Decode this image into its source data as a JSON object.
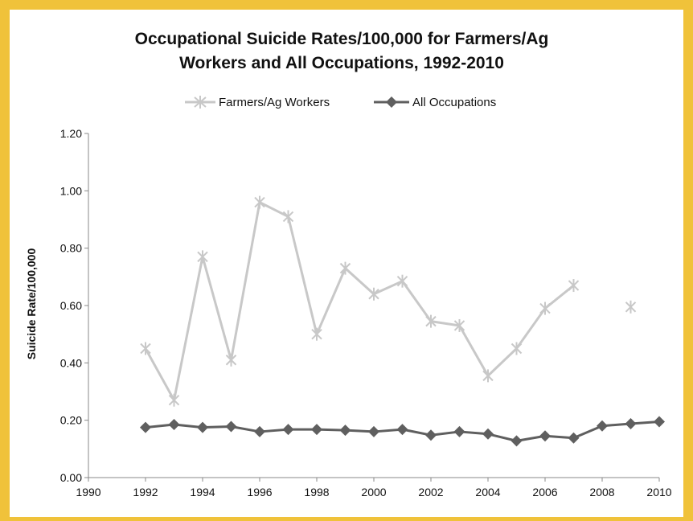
{
  "chart_data": {
    "type": "line",
    "title_lines": [
      "Occupational Suicide Rates/100,000 for Farmers/Ag",
      "Workers and All Occupations, 1992-2010"
    ],
    "xlabel": "",
    "ylabel": "Suicide Rate/100,000",
    "x_ticks": [
      "1990",
      "1992",
      "1994",
      "1996",
      "1998",
      "2000",
      "2002",
      "2004",
      "2006",
      "2008",
      "2010"
    ],
    "y_ticks": [
      "0.00",
      "0.20",
      "0.40",
      "0.60",
      "0.80",
      "1.00",
      "1.20"
    ],
    "xlim": [
      1990,
      2010
    ],
    "ylim": [
      0,
      1.2
    ],
    "grid": false,
    "legend_position": "top",
    "series": [
      {
        "name": "Farmers/Ag Workers",
        "color": "#c8c8c8",
        "marker": "star",
        "points": [
          {
            "x": 1992,
            "y": 0.45
          },
          {
            "x": 1993,
            "y": 0.27
          },
          {
            "x": 1994,
            "y": 0.77
          },
          {
            "x": 1995,
            "y": 0.41
          },
          {
            "x": 1996,
            "y": 0.96
          },
          {
            "x": 1997,
            "y": 0.91
          },
          {
            "x": 1998,
            "y": 0.5
          },
          {
            "x": 1999,
            "y": 0.73
          },
          {
            "x": 2000,
            "y": 0.64
          },
          {
            "x": 2001,
            "y": 0.685
          },
          {
            "x": 2002,
            "y": 0.545
          },
          {
            "x": 2003,
            "y": 0.53
          },
          {
            "x": 2004,
            "y": 0.355
          },
          {
            "x": 2005,
            "y": 0.45
          },
          {
            "x": 2006,
            "y": 0.59
          },
          {
            "x": 2007,
            "y": 0.67
          },
          {
            "x": 2008,
            "y": null
          },
          {
            "x": 2009,
            "y": 0.595
          }
        ]
      },
      {
        "name": "All Occupations",
        "color": "#5f5f5f",
        "marker": "diamond",
        "points": [
          {
            "x": 1992,
            "y": 0.175
          },
          {
            "x": 1993,
            "y": 0.185
          },
          {
            "x": 1994,
            "y": 0.175
          },
          {
            "x": 1995,
            "y": 0.178
          },
          {
            "x": 1996,
            "y": 0.16
          },
          {
            "x": 1997,
            "y": 0.168
          },
          {
            "x": 1998,
            "y": 0.168
          },
          {
            "x": 1999,
            "y": 0.165
          },
          {
            "x": 2000,
            "y": 0.16
          },
          {
            "x": 2001,
            "y": 0.168
          },
          {
            "x": 2002,
            "y": 0.148
          },
          {
            "x": 2003,
            "y": 0.16
          },
          {
            "x": 2004,
            "y": 0.152
          },
          {
            "x": 2005,
            "y": 0.128
          },
          {
            "x": 2006,
            "y": 0.145
          },
          {
            "x": 2007,
            "y": 0.138
          },
          {
            "x": 2008,
            "y": 0.18
          },
          {
            "x": 2009,
            "y": 0.188
          },
          {
            "x": 2010,
            "y": 0.195
          }
        ]
      }
    ]
  }
}
